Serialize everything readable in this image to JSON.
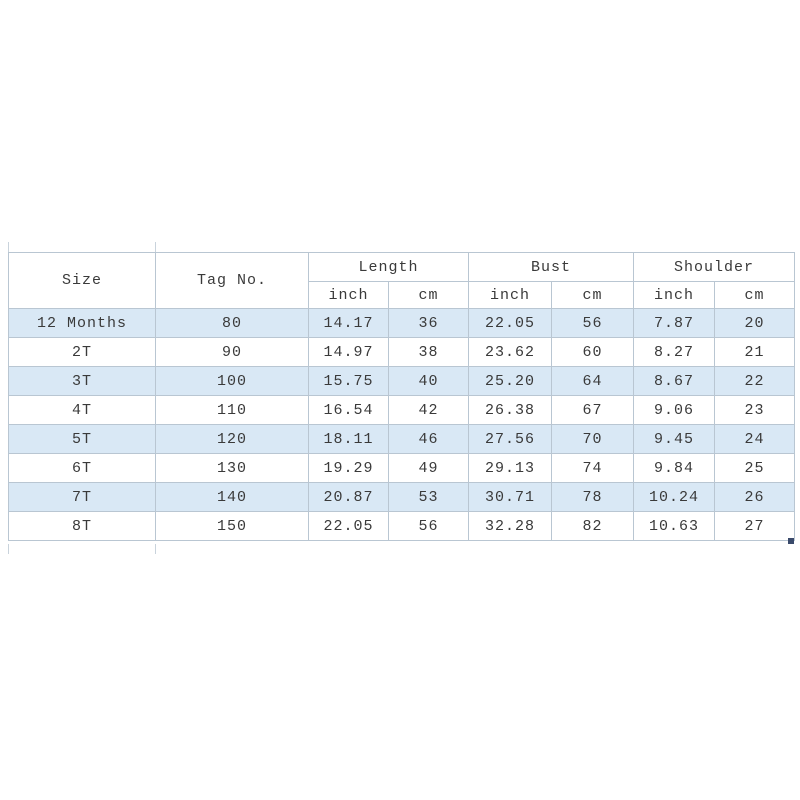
{
  "chart_data": {
    "type": "table",
    "column_groups": [
      {
        "label": "Size"
      },
      {
        "label": "Tag No."
      },
      {
        "label": "Length",
        "sub": [
          "inch",
          "cm"
        ]
      },
      {
        "label": "Bust",
        "sub": [
          "inch",
          "cm"
        ]
      },
      {
        "label": "Shoulder",
        "sub": [
          "inch",
          "cm"
        ]
      }
    ],
    "rows": [
      [
        "12 Months",
        "80",
        "14.17",
        "36",
        "22.05",
        "56",
        "7.87",
        "20"
      ],
      [
        "2T",
        "90",
        "14.97",
        "38",
        "23.62",
        "60",
        "8.27",
        "21"
      ],
      [
        "3T",
        "100",
        "15.75",
        "40",
        "25.20",
        "64",
        "8.67",
        "22"
      ],
      [
        "4T",
        "110",
        "16.54",
        "42",
        "26.38",
        "67",
        "9.06",
        "23"
      ],
      [
        "5T",
        "120",
        "18.11",
        "46",
        "27.56",
        "70",
        "9.45",
        "24"
      ],
      [
        "6T",
        "130",
        "19.29",
        "49",
        "29.13",
        "74",
        "9.84",
        "25"
      ],
      [
        "7T",
        "140",
        "20.87",
        "53",
        "30.71",
        "78",
        "10.24",
        "26"
      ],
      [
        "8T",
        "150",
        "22.05",
        "56",
        "32.28",
        "82",
        "10.63",
        "27"
      ]
    ],
    "layout": {
      "alternating_row_fill": true,
      "grid": true,
      "legend_position": "none"
    }
  },
  "colors": {
    "row_alt_fill": "#d9e8f5",
    "grid_border": "#b9c6d2",
    "text": "#3a3a3a",
    "fill_handle": "#3a4a6b",
    "background": "#ffffff"
  }
}
